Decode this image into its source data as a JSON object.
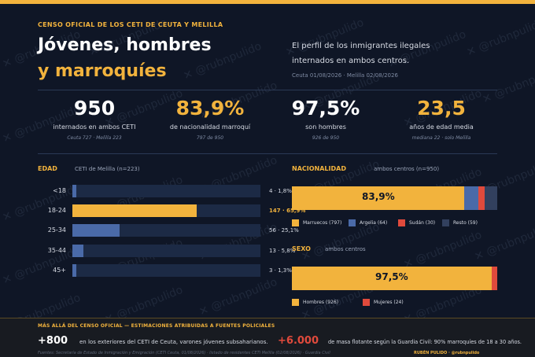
{
  "header": {
    "kicker": "CENSO OFICIAL DE LOS CETI DE CEUTA Y MELILLA",
    "title_line1": "Jóvenes, hombres",
    "title_line2": "y marroquíes",
    "intro": "El perfil de los inmigrantes ilegales internados en ambos centros.",
    "dates": "Ceuta 01/08/2026  ·  Melilla 02/08/2026"
  },
  "kpis": [
    {
      "value": "950",
      "label": "internados en ambos CETI",
      "sub": "Ceuta 727 · Melilla 223"
    },
    {
      "value": "83,9%",
      "label": "de nacionalidad marroquí",
      "sub": "797 de 950"
    },
    {
      "value": "97,5%",
      "label": "son hombres",
      "sub": "926 de 950"
    },
    {
      "value": "23,5",
      "label": "años de edad media",
      "sub": "mediana 22 · solo Melilla"
    }
  ],
  "colors": {
    "accent": "#f2b33d",
    "blue": "#4a6aa8",
    "red": "#e04a3c",
    "track": "#1c2a45",
    "dark_blue": "#32405e"
  },
  "chart_data": [
    {
      "type": "bar",
      "orientation": "horizontal",
      "title": "EDAD",
      "subtitle": "CETI de Melilla (n=223)",
      "categories": [
        "<18",
        "18-24",
        "25-34",
        "35-44",
        "45+"
      ],
      "values": [
        4,
        147,
        56,
        13,
        3
      ],
      "percents": [
        1.8,
        65.9,
        25.1,
        5.8,
        1.3
      ],
      "value_labels": [
        "4 · 1,8%",
        "147 · 65,9%",
        "56 · 25,1%",
        "13 · 5,8%",
        "3 · 1,3%"
      ],
      "xlim": [
        0,
        223
      ],
      "highlight_category": "18-24"
    },
    {
      "type": "bar",
      "orientation": "stacked-horizontal",
      "title": "NACIONALIDAD",
      "subtitle": "ambos centros (n=950)",
      "series": [
        {
          "name": "Marruecos",
          "value": 797,
          "color": "#f2b33d"
        },
        {
          "name": "Argelia",
          "value": 64,
          "color": "#4a6aa8"
        },
        {
          "name": "Sudán",
          "value": 30,
          "color": "#e04a3c"
        },
        {
          "name": "Resto",
          "value": 59,
          "color": "#32405e"
        }
      ],
      "legend": [
        "Marruecos (797)",
        "Argelia (64)",
        "Sudán (30)",
        "Resto (59)"
      ],
      "bar_label": "83,9%",
      "total": 950
    },
    {
      "type": "bar",
      "orientation": "stacked-horizontal",
      "title": "SEXO",
      "subtitle": "ambos centros",
      "series": [
        {
          "name": "Hombres",
          "value": 926,
          "color": "#f2b33d"
        },
        {
          "name": "Mujeres",
          "value": 24,
          "color": "#e04a3c"
        }
      ],
      "legend": [
        "Hombres (926)",
        "Mujeres (24)"
      ],
      "bar_label": "97,5%",
      "total": 950
    }
  ],
  "footer": {
    "title": "MÁS ALLÁ DEL CENSO OFICIAL   —   ESTIMACIONES ATRIBUIDAS A FUENTES POLICIALES",
    "stat1_value": "+800",
    "stat1_text": "en los exteriores del CETI de Ceuta, varones jóvenes subsaharianos.",
    "stat2_value": "+6.000",
    "stat2_text": "de masa flotante según la Guardia Civil: 90% marroquíes de 18 a 30 años.",
    "sources": "Fuentes: Secretaría de Estado de Inmigración y Emigración (CETI Ceuta, 01/08/2026) · listado de residentes CETI Melilla (02/08/2026) · Guardia Civil",
    "author": "RUBÉN PULIDO · @rubnpulido"
  },
  "watermark": "✕ @rubnpulido"
}
